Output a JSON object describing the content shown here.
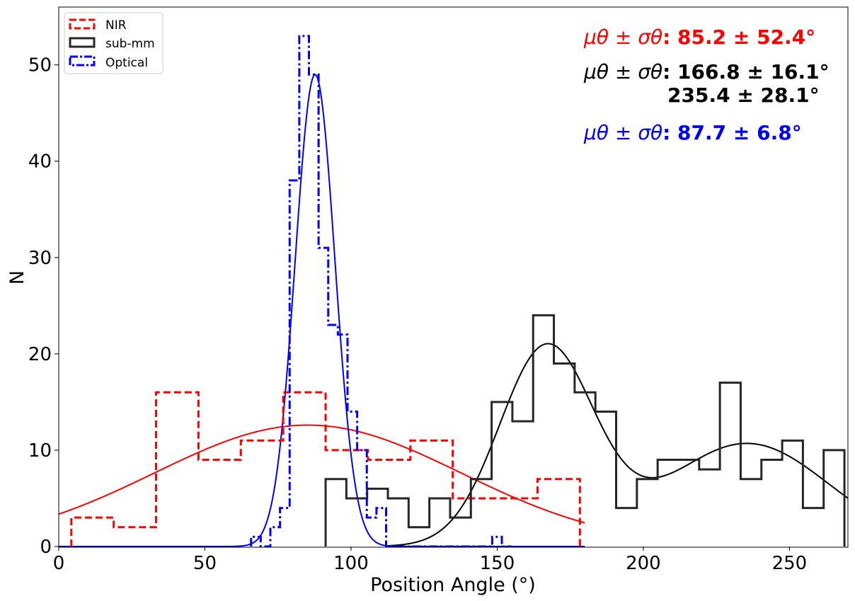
{
  "chart_data": {
    "type": "histogram",
    "xlabel": "Position Angle (°)",
    "ylabel": "N",
    "xlim": [
      0,
      270
    ],
    "ylim": [
      0,
      56
    ],
    "xticks": [
      0,
      50,
      100,
      150,
      200,
      250
    ],
    "yticks": [
      0,
      10,
      20,
      30,
      40,
      50
    ],
    "grid": false,
    "legend_position": "top-left",
    "series": [
      {
        "name": "NIR",
        "color": "#ff0000",
        "style": "dashed",
        "bin_edges": [
          4.3,
          18.8,
          33.3,
          47.8,
          62.3,
          76.8,
          91.3,
          105.8,
          120.3,
          134.8,
          149.3,
          163.8,
          178.3
        ],
        "counts": [
          3,
          2,
          16,
          9,
          11,
          16,
          10,
          9,
          11,
          5,
          5,
          7
        ]
      },
      {
        "name": "sub-mm",
        "color": "#262626",
        "style": "solid",
        "bin_edges": [
          91.3,
          98.4,
          105.5,
          112.6,
          119.7,
          126.8,
          133.9,
          141.0,
          148.1,
          155.2,
          162.3,
          169.4,
          176.5,
          183.6,
          190.7,
          197.8,
          204.9,
          212.0,
          219.1,
          226.2,
          233.3,
          240.4,
          247.5,
          254.6,
          261.7,
          268.8
        ],
        "counts": [
          7,
          5,
          6,
          5,
          2,
          5,
          3,
          7,
          15,
          13,
          24,
          19,
          16,
          14,
          4,
          7,
          9,
          9,
          8,
          17,
          7,
          9,
          11,
          4,
          10
        ]
      },
      {
        "name": "Optical",
        "color": "#0000ff",
        "style": "dashdot",
        "bin_edges": [
          65.8,
          69.1,
          72.4,
          75.7,
          79.0,
          82.3,
          85.6,
          88.9,
          92.2,
          95.5,
          98.8,
          102.1,
          105.4,
          108.7,
          112.0,
          115.3,
          118.6,
          121.9,
          125.2,
          128.5,
          131.8,
          135.1,
          138.4,
          141.7,
          145.0,
          148.3,
          151.6,
          154.9
        ],
        "counts": [
          1,
          0,
          2,
          4,
          38,
          53,
          49,
          31,
          23,
          22,
          14,
          10,
          3,
          4,
          0,
          0,
          0,
          0,
          0,
          0,
          0,
          0,
          0,
          0,
          0,
          1,
          0
        ]
      }
    ],
    "fits": [
      {
        "series": "NIR",
        "color": "#ff0000",
        "components": [
          {
            "amplitude": 12.6,
            "mu": 85.2,
            "sigma": 52.4
          }
        ],
        "x_range": [
          0,
          180
        ]
      },
      {
        "series": "sub-mm",
        "color": "#000000",
        "components": [
          {
            "amplitude": 20.5,
            "mu": 166.8,
            "sigma": 16.1
          },
          {
            "amplitude": 10.7,
            "mu": 235.4,
            "sigma": 28.1
          }
        ],
        "x_range": [
          112,
          270
        ]
      },
      {
        "series": "Optical",
        "color": "#0000ff",
        "components": [
          {
            "amplitude": 49.0,
            "mu": 87.7,
            "sigma": 6.8
          }
        ],
        "x_range": [
          0,
          180
        ]
      }
    ],
    "annotations": [
      {
        "label": "μθ ± σθ",
        "sep": ": ",
        "value": "85.2 ± 52.4°",
        "color": "#ff0000"
      },
      {
        "label": "μθ ± σθ",
        "sep": ": ",
        "value": "166.8 ± 16.1°",
        "value2": "235.4 ± 28.1°",
        "color": "#000000"
      },
      {
        "label": "μθ ± σθ",
        "sep": ": ",
        "value": "87.7 ± 6.8°",
        "color": "#0000ff"
      }
    ]
  }
}
